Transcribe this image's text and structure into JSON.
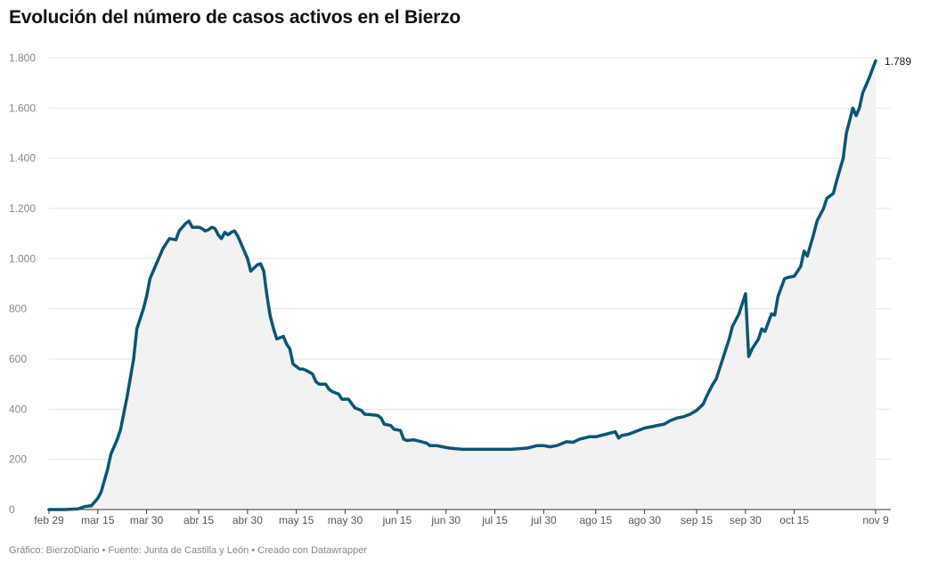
{
  "title": "Evolución del número de casos activos en el Bierzo",
  "footer": "Gráfico: BierzoDiario • Fuente: Junta de Castilla y León • Creado con Datawrapper",
  "colors": {
    "line": "#0b5671",
    "area": "#f2f2f2",
    "grid": "#e4e4e4",
    "axis": "#333333"
  },
  "chart_data": {
    "type": "area",
    "title": "Evolución del número de casos activos en el Bierzo",
    "xlabel": "",
    "ylabel": "",
    "x_range": [
      "2020-02-29",
      "2020-11-09"
    ],
    "ylim": [
      0,
      1800
    ],
    "y_ticks": [
      0,
      200,
      400,
      600,
      800,
      1000,
      1200,
      1400,
      1600,
      1800
    ],
    "y_tick_labels": [
      "0",
      "200",
      "400",
      "600",
      "800",
      "1.000",
      "1.200",
      "1.400",
      "1.600",
      "1.800"
    ],
    "x_ticks": [
      "2020-02-29",
      "2020-03-15",
      "2020-03-30",
      "2020-04-15",
      "2020-04-30",
      "2020-05-15",
      "2020-05-30",
      "2020-06-15",
      "2020-06-30",
      "2020-07-15",
      "2020-07-30",
      "2020-08-15",
      "2020-08-30",
      "2020-09-15",
      "2020-09-30",
      "2020-10-15",
      "2020-11-09"
    ],
    "x_tick_labels": [
      "feb 29",
      "mar 15",
      "mar 30",
      "abr 15",
      "abr 30",
      "may 15",
      "may 30",
      "jun 15",
      "jun 30",
      "jul 15",
      "jul 30",
      "ago 15",
      "ago 30",
      "sep 15",
      "sep 30",
      "oct 15",
      "nov 9"
    ],
    "grid": true,
    "end_label": "1.789",
    "series": [
      {
        "points": [
          [
            "2020-02-29",
            0
          ],
          [
            "2020-03-05",
            0
          ],
          [
            "2020-03-09",
            3
          ],
          [
            "2020-03-11",
            12
          ],
          [
            "2020-03-13",
            15
          ],
          [
            "2020-03-15",
            45
          ],
          [
            "2020-03-16",
            70
          ],
          [
            "2020-03-18",
            160
          ],
          [
            "2020-03-19",
            220
          ],
          [
            "2020-03-21",
            280
          ],
          [
            "2020-03-22",
            320
          ],
          [
            "2020-03-24",
            450
          ],
          [
            "2020-03-26",
            600
          ],
          [
            "2020-03-27",
            720
          ],
          [
            "2020-03-29",
            800
          ],
          [
            "2020-03-30",
            850
          ],
          [
            "2020-03-31",
            920
          ],
          [
            "2020-04-02",
            980
          ],
          [
            "2020-04-04",
            1040
          ],
          [
            "2020-04-05",
            1060
          ],
          [
            "2020-04-06",
            1080
          ],
          [
            "2020-04-08",
            1075
          ],
          [
            "2020-04-09",
            1110
          ],
          [
            "2020-04-11",
            1140
          ],
          [
            "2020-04-12",
            1150
          ],
          [
            "2020-04-13",
            1125
          ],
          [
            "2020-04-15",
            1125
          ],
          [
            "2020-04-16",
            1120
          ],
          [
            "2020-04-17",
            1110
          ],
          [
            "2020-04-18",
            1115
          ],
          [
            "2020-04-19",
            1125
          ],
          [
            "2020-04-20",
            1120
          ],
          [
            "2020-04-21",
            1095
          ],
          [
            "2020-04-22",
            1080
          ],
          [
            "2020-04-23",
            1105
          ],
          [
            "2020-04-24",
            1095
          ],
          [
            "2020-04-25",
            1105
          ],
          [
            "2020-04-26",
            1110
          ],
          [
            "2020-04-27",
            1090
          ],
          [
            "2020-04-28",
            1060
          ],
          [
            "2020-04-30",
            1000
          ],
          [
            "2020-05-01",
            950
          ],
          [
            "2020-05-03",
            975
          ],
          [
            "2020-05-04",
            980
          ],
          [
            "2020-05-05",
            950
          ],
          [
            "2020-05-06",
            850
          ],
          [
            "2020-05-07",
            770
          ],
          [
            "2020-05-08",
            720
          ],
          [
            "2020-05-09",
            680
          ],
          [
            "2020-05-11",
            690
          ],
          [
            "2020-05-12",
            660
          ],
          [
            "2020-05-13",
            640
          ],
          [
            "2020-05-14",
            580
          ],
          [
            "2020-05-16",
            560
          ],
          [
            "2020-05-17",
            560
          ],
          [
            "2020-05-18",
            555
          ],
          [
            "2020-05-20",
            540
          ],
          [
            "2020-05-21",
            510
          ],
          [
            "2020-05-22",
            500
          ],
          [
            "2020-05-24",
            500
          ],
          [
            "2020-05-25",
            480
          ],
          [
            "2020-05-26",
            470
          ],
          [
            "2020-05-28",
            460
          ],
          [
            "2020-05-29",
            440
          ],
          [
            "2020-05-31",
            440
          ],
          [
            "2020-06-02",
            405
          ],
          [
            "2020-06-04",
            395
          ],
          [
            "2020-06-05",
            380
          ],
          [
            "2020-06-07",
            378
          ],
          [
            "2020-06-09",
            375
          ],
          [
            "2020-06-10",
            365
          ],
          [
            "2020-06-11",
            340
          ],
          [
            "2020-06-13",
            335
          ],
          [
            "2020-06-14",
            320
          ],
          [
            "2020-06-16",
            315
          ],
          [
            "2020-06-17",
            280
          ],
          [
            "2020-06-18",
            275
          ],
          [
            "2020-06-20",
            278
          ],
          [
            "2020-06-22",
            272
          ],
          [
            "2020-06-24",
            265
          ],
          [
            "2020-06-25",
            255
          ],
          [
            "2020-06-27",
            255
          ],
          [
            "2020-06-29",
            250
          ],
          [
            "2020-07-01",
            245
          ],
          [
            "2020-07-05",
            240
          ],
          [
            "2020-07-10",
            240
          ],
          [
            "2020-07-15",
            240
          ],
          [
            "2020-07-20",
            240
          ],
          [
            "2020-07-25",
            245
          ],
          [
            "2020-07-28",
            255
          ],
          [
            "2020-07-30",
            255
          ],
          [
            "2020-08-01",
            250
          ],
          [
            "2020-08-03",
            255
          ],
          [
            "2020-08-06",
            270
          ],
          [
            "2020-08-08",
            268
          ],
          [
            "2020-08-10",
            280
          ],
          [
            "2020-08-13",
            290
          ],
          [
            "2020-08-15",
            290
          ],
          [
            "2020-08-18",
            300
          ],
          [
            "2020-08-21",
            310
          ],
          [
            "2020-08-22",
            285
          ],
          [
            "2020-08-23",
            295
          ],
          [
            "2020-08-25",
            300
          ],
          [
            "2020-08-27",
            310
          ],
          [
            "2020-08-30",
            325
          ],
          [
            "2020-09-01",
            330
          ],
          [
            "2020-09-03",
            335
          ],
          [
            "2020-09-05",
            340
          ],
          [
            "2020-09-07",
            355
          ],
          [
            "2020-09-09",
            365
          ],
          [
            "2020-09-11",
            370
          ],
          [
            "2020-09-13",
            380
          ],
          [
            "2020-09-15",
            395
          ],
          [
            "2020-09-17",
            420
          ],
          [
            "2020-09-18",
            450
          ],
          [
            "2020-09-20",
            500
          ],
          [
            "2020-09-21",
            520
          ],
          [
            "2020-09-23",
            600
          ],
          [
            "2020-09-25",
            680
          ],
          [
            "2020-09-26",
            730
          ],
          [
            "2020-09-28",
            780
          ],
          [
            "2020-09-29",
            820
          ],
          [
            "2020-09-30",
            860
          ],
          [
            "2020-10-01",
            610
          ],
          [
            "2020-10-02",
            640
          ],
          [
            "2020-10-04",
            680
          ],
          [
            "2020-10-05",
            720
          ],
          [
            "2020-10-06",
            710
          ],
          [
            "2020-10-08",
            780
          ],
          [
            "2020-10-09",
            775
          ],
          [
            "2020-10-10",
            850
          ],
          [
            "2020-10-12",
            920
          ],
          [
            "2020-10-13",
            925
          ],
          [
            "2020-10-15",
            930
          ],
          [
            "2020-10-17",
            970
          ],
          [
            "2020-10-18",
            1030
          ],
          [
            "2020-10-19",
            1010
          ],
          [
            "2020-10-21",
            1100
          ],
          [
            "2020-10-22",
            1150
          ],
          [
            "2020-10-24",
            1200
          ],
          [
            "2020-10-25",
            1240
          ],
          [
            "2020-10-27",
            1260
          ],
          [
            "2020-10-28",
            1310
          ],
          [
            "2020-10-30",
            1400
          ],
          [
            "2020-10-31",
            1500
          ],
          [
            "2020-11-02",
            1600
          ],
          [
            "2020-11-03",
            1570
          ],
          [
            "2020-11-04",
            1600
          ],
          [
            "2020-11-05",
            1660
          ],
          [
            "2020-11-07",
            1720
          ],
          [
            "2020-11-09",
            1789
          ]
        ]
      }
    ]
  }
}
